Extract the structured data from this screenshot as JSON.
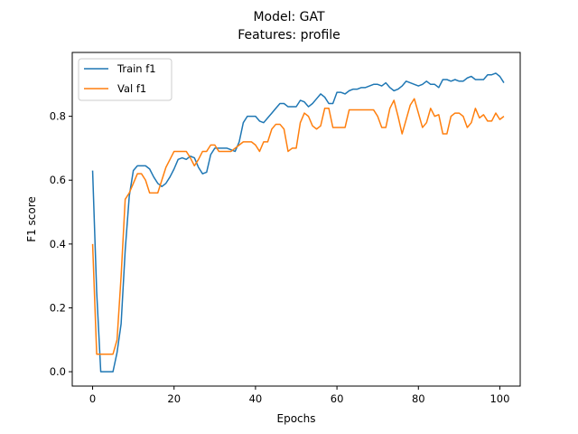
{
  "chart_data": {
    "type": "line",
    "title": "Model: GAT",
    "subtitle": "Features: profile",
    "xlabel": "Epochs",
    "ylabel": "F1 score",
    "xlim": [
      -5,
      105
    ],
    "ylim": [
      -0.045,
      1.0
    ],
    "xticks": [
      "0",
      "20",
      "40",
      "60",
      "80",
      "100"
    ],
    "yticks": [
      "0.0",
      "0.2",
      "0.4",
      "0.6",
      "0.8"
    ],
    "grid": false,
    "legend": "upper-left",
    "series": [
      {
        "name": "Train f1",
        "color": "#1f77b4",
        "values": [
          0.63,
          0.25,
          0.0,
          0.0,
          0.0,
          0.0,
          0.06,
          0.15,
          0.38,
          0.55,
          0.63,
          0.645,
          0.645,
          0.645,
          0.635,
          0.61,
          0.59,
          0.58,
          0.59,
          0.61,
          0.635,
          0.665,
          0.67,
          0.665,
          0.675,
          0.67,
          0.64,
          0.62,
          0.625,
          0.68,
          0.7,
          0.7,
          0.7,
          0.7,
          0.695,
          0.69,
          0.72,
          0.78,
          0.8,
          0.8,
          0.8,
          0.785,
          0.78,
          0.795,
          0.81,
          0.825,
          0.84,
          0.84,
          0.83,
          0.83,
          0.83,
          0.85,
          0.845,
          0.83,
          0.84,
          0.855,
          0.87,
          0.86,
          0.84,
          0.84,
          0.875,
          0.875,
          0.87,
          0.88,
          0.885,
          0.885,
          0.89,
          0.89,
          0.895,
          0.9,
          0.9,
          0.895,
          0.905,
          0.89,
          0.88,
          0.885,
          0.895,
          0.91,
          0.905,
          0.9,
          0.895,
          0.9,
          0.91,
          0.9,
          0.9,
          0.89,
          0.915,
          0.915,
          0.91,
          0.915,
          0.91,
          0.91,
          0.92,
          0.925,
          0.915,
          0.915,
          0.915,
          0.93,
          0.93,
          0.935,
          0.925,
          0.905
        ]
      },
      {
        "name": "Val f1",
        "color": "#ff7f0e",
        "values": [
          0.4,
          0.055,
          0.055,
          0.055,
          0.055,
          0.055,
          0.1,
          0.3,
          0.54,
          0.56,
          0.59,
          0.62,
          0.62,
          0.6,
          0.56,
          0.56,
          0.56,
          0.6,
          0.64,
          0.665,
          0.69,
          0.69,
          0.69,
          0.69,
          0.67,
          0.645,
          0.665,
          0.69,
          0.69,
          0.71,
          0.71,
          0.69,
          0.69,
          0.69,
          0.69,
          0.7,
          0.71,
          0.72,
          0.72,
          0.72,
          0.71,
          0.69,
          0.72,
          0.72,
          0.76,
          0.775,
          0.775,
          0.76,
          0.69,
          0.7,
          0.7,
          0.78,
          0.81,
          0.8,
          0.77,
          0.76,
          0.77,
          0.825,
          0.825,
          0.765,
          0.765,
          0.765,
          0.765,
          0.82,
          0.82,
          0.82,
          0.82,
          0.82,
          0.82,
          0.82,
          0.8,
          0.765,
          0.765,
          0.825,
          0.85,
          0.8,
          0.745,
          0.79,
          0.835,
          0.855,
          0.81,
          0.765,
          0.78,
          0.825,
          0.8,
          0.805,
          0.745,
          0.745,
          0.8,
          0.81,
          0.81,
          0.8,
          0.765,
          0.78,
          0.825,
          0.795,
          0.805,
          0.785,
          0.785,
          0.81,
          0.79,
          0.8
        ]
      }
    ]
  }
}
